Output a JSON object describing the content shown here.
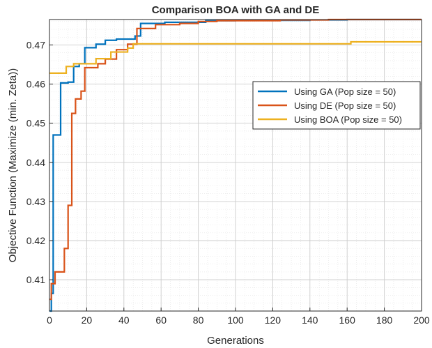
{
  "chart_data": {
    "type": "line",
    "title": "Comparison BOA with GA and DE",
    "xlabel": "Generations",
    "ylabel": "Objective Function (Maximize (min. Zeta))",
    "xlim": [
      0,
      200
    ],
    "ylim": [
      0.402,
      0.4765
    ],
    "xticks": [
      0,
      20,
      40,
      60,
      80,
      100,
      120,
      140,
      160,
      180,
      200
    ],
    "yticks": [
      0.41,
      0.42,
      0.43,
      0.44,
      0.45,
      0.46,
      0.47
    ],
    "xtick_labels": [
      "0",
      "20",
      "40",
      "60",
      "80",
      "100",
      "120",
      "140",
      "160",
      "180",
      "200"
    ],
    "ytick_labels": [
      "0.41",
      "0.42",
      "0.43",
      "0.44",
      "0.45",
      "0.46",
      "0.47"
    ],
    "grid": "major-and-minor",
    "legend_position": "right-middle",
    "series": [
      {
        "name": "Using GA (Pop size = 50)",
        "color": "#0072BD",
        "step": true,
        "points": [
          [
            0,
            0.402
          ],
          [
            1,
            0.4065
          ],
          [
            2,
            0.447
          ],
          [
            6,
            0.4603
          ],
          [
            10,
            0.4605
          ],
          [
            13,
            0.4645
          ],
          [
            16,
            0.4652
          ],
          [
            19,
            0.4693
          ],
          [
            25,
            0.4702
          ],
          [
            30,
            0.4712
          ],
          [
            36,
            0.4715
          ],
          [
            40,
            0.4715
          ],
          [
            46,
            0.4723
          ],
          [
            49,
            0.4755
          ],
          [
            55,
            0.4755
          ],
          [
            62,
            0.4758
          ],
          [
            70,
            0.4758
          ],
          [
            84,
            0.4762
          ],
          [
            100,
            0.4763
          ],
          [
            120,
            0.4763
          ],
          [
            140,
            0.4764
          ],
          [
            160,
            0.4765
          ],
          [
            180,
            0.4765
          ],
          [
            200,
            0.4765
          ]
        ]
      },
      {
        "name": "Using DE (Pop size = 50)",
        "color": "#D95319",
        "step": true,
        "points": [
          [
            0,
            0.405
          ],
          [
            1,
            0.409
          ],
          [
            3,
            0.412
          ],
          [
            8,
            0.418
          ],
          [
            10,
            0.429
          ],
          [
            12,
            0.4525
          ],
          [
            14,
            0.4562
          ],
          [
            17,
            0.4582
          ],
          [
            19,
            0.4642
          ],
          [
            26,
            0.4652
          ],
          [
            30,
            0.4664
          ],
          [
            36,
            0.4688
          ],
          [
            42,
            0.4702
          ],
          [
            47,
            0.4742
          ],
          [
            57,
            0.4752
          ],
          [
            70,
            0.4755
          ],
          [
            80,
            0.476
          ],
          [
            90,
            0.4762
          ],
          [
            100,
            0.4762
          ],
          [
            124,
            0.4764
          ],
          [
            150,
            0.4765
          ],
          [
            200,
            0.4765
          ]
        ]
      },
      {
        "name": "Using BOA (Pop size = 50)",
        "color": "#EDB120",
        "step": true,
        "points": [
          [
            0,
            0.4628
          ],
          [
            9,
            0.4645
          ],
          [
            13,
            0.4652
          ],
          [
            25,
            0.4665
          ],
          [
            33,
            0.4682
          ],
          [
            42,
            0.4692
          ],
          [
            45,
            0.4703
          ],
          [
            162,
            0.4708
          ],
          [
            200,
            0.4708
          ]
        ]
      }
    ]
  }
}
